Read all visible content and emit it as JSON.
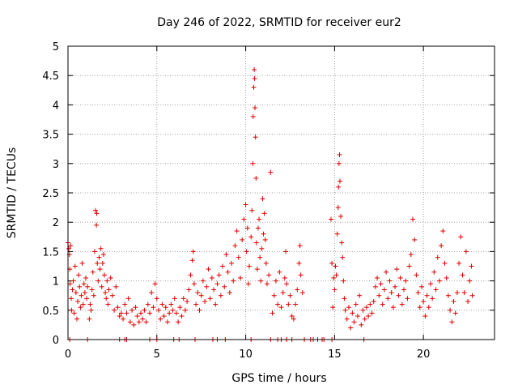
{
  "chart_data": {
    "type": "scatter",
    "title": "Day 246 of 2022, SRMTID for receiver eur2",
    "xlabel": "GPS time / hours",
    "ylabel": "SRMTID / TECUs",
    "xlim": [
      0,
      24
    ],
    "ylim": [
      0,
      5
    ],
    "x_ticks": [
      0,
      5,
      10,
      15,
      20
    ],
    "x_tick_labels": [
      "0",
      "5",
      "10",
      "15",
      "20"
    ],
    "y_ticks": [
      0,
      0.5,
      1,
      1.5,
      2,
      2.5,
      3,
      3.5,
      4,
      4.5,
      5
    ],
    "y_tick_labels": [
      "0",
      "0.5",
      "1",
      "1.5",
      "2",
      "2.5",
      "3",
      "3.5",
      "4",
      "4.5",
      "5"
    ],
    "grid": true,
    "marker": "+",
    "color": "#e00000",
    "series": [
      {
        "name": "SRMTID",
        "points": [
          [
            0.0,
            1.65
          ],
          [
            0.05,
            1.55
          ],
          [
            0.08,
            1.45
          ],
          [
            0.1,
            1.2
          ],
          [
            0.12,
            0.95
          ],
          [
            0.15,
            1.6
          ],
          [
            0.18,
            0.7
          ],
          [
            0.2,
            0.5
          ],
          [
            0.25,
            0.85
          ],
          [
            0.3,
            1.0
          ],
          [
            0.35,
            0.45
          ],
          [
            0.4,
            1.25
          ],
          [
            0.45,
            0.8
          ],
          [
            0.5,
            0.35
          ],
          [
            0.55,
            0.65
          ],
          [
            0.6,
            1.1
          ],
          [
            0.65,
            0.9
          ],
          [
            0.7,
            0.55
          ],
          [
            0.75,
            0.75
          ],
          [
            0.8,
            1.3
          ],
          [
            0.85,
            0.6
          ],
          [
            0.9,
            0.95
          ],
          [
            0.95,
            0.8
          ],
          [
            1.0,
            1.05
          ],
          [
            1.05,
            0.7
          ],
          [
            1.1,
            0.9
          ],
          [
            1.2,
            0.35
          ],
          [
            1.25,
            0.6
          ],
          [
            1.3,
            0.5
          ],
          [
            1.35,
            0.85
          ],
          [
            1.4,
            1.15
          ],
          [
            1.45,
            0.75
          ],
          [
            1.5,
            1.5
          ],
          [
            1.55,
            2.2
          ],
          [
            1.6,
            1.95
          ],
          [
            1.62,
            2.15
          ],
          [
            1.65,
            1.3
          ],
          [
            1.7,
            1.0
          ],
          [
            1.75,
            1.4
          ],
          [
            1.8,
            1.2
          ],
          [
            1.85,
            1.55
          ],
          [
            1.9,
            0.9
          ],
          [
            1.95,
            1.3
          ],
          [
            2.0,
            1.45
          ],
          [
            2.05,
            1.1
          ],
          [
            2.1,
            0.8
          ],
          [
            2.15,
            0.7
          ],
          [
            2.2,
            1.0
          ],
          [
            2.25,
            0.6
          ],
          [
            2.3,
            0.85
          ],
          [
            2.4,
            1.05
          ],
          [
            2.5,
            0.75
          ],
          [
            2.6,
            0.5
          ],
          [
            2.7,
            0.9
          ],
          [
            2.8,
            0.55
          ],
          [
            2.9,
            0.4
          ],
          [
            3.0,
            0.45
          ],
          [
            3.1,
            0.35
          ],
          [
            3.2,
            0.6
          ],
          [
            3.3,
            0.45
          ],
          [
            3.4,
            0.7
          ],
          [
            3.5,
            0.3
          ],
          [
            3.6,
            0.5
          ],
          [
            3.7,
            0.25
          ],
          [
            3.8,
            0.55
          ],
          [
            3.9,
            0.4
          ],
          [
            4.0,
            0.3
          ],
          [
            4.1,
            0.45
          ],
          [
            4.2,
            0.35
          ],
          [
            4.3,
            0.5
          ],
          [
            4.4,
            0.3
          ],
          [
            4.5,
            0.6
          ],
          [
            4.6,
            0.45
          ],
          [
            4.7,
            0.8
          ],
          [
            4.8,
            0.55
          ],
          [
            4.9,
            0.95
          ],
          [
            5.0,
            0.7
          ],
          [
            5.1,
            0.5
          ],
          [
            5.2,
            0.35
          ],
          [
            5.3,
            0.6
          ],
          [
            5.4,
            0.4
          ],
          [
            5.5,
            0.55
          ],
          [
            5.6,
            0.3
          ],
          [
            5.7,
            0.45
          ],
          [
            5.8,
            0.6
          ],
          [
            5.9,
            0.5
          ],
          [
            6.0,
            0.7
          ],
          [
            6.1,
            0.45
          ],
          [
            6.2,
            0.3
          ],
          [
            6.3,
            0.55
          ],
          [
            6.4,
            0.4
          ],
          [
            6.5,
            0.7
          ],
          [
            6.6,
            0.5
          ],
          [
            6.7,
            0.65
          ],
          [
            6.8,
            0.85
          ],
          [
            6.9,
            1.1
          ],
          [
            7.0,
            1.35
          ],
          [
            7.05,
            1.5
          ],
          [
            7.1,
            0.95
          ],
          [
            7.2,
            0.6
          ],
          [
            7.3,
            0.8
          ],
          [
            7.4,
            0.5
          ],
          [
            7.5,
            0.75
          ],
          [
            7.6,
            1.0
          ],
          [
            7.7,
            0.65
          ],
          [
            7.8,
            0.9
          ],
          [
            7.9,
            1.2
          ],
          [
            8.0,
            0.7
          ],
          [
            8.1,
            1.05
          ],
          [
            8.2,
            0.85
          ],
          [
            8.3,
            0.6
          ],
          [
            8.4,
            0.95
          ],
          [
            8.5,
            1.1
          ],
          [
            8.6,
            0.75
          ],
          [
            8.7,
            1.25
          ],
          [
            8.8,
            0.9
          ],
          [
            8.9,
            1.45
          ],
          [
            9.0,
            1.15
          ],
          [
            9.1,
            0.8
          ],
          [
            9.2,
            1.3
          ],
          [
            9.3,
            1.0
          ],
          [
            9.4,
            1.6
          ],
          [
            9.5,
            1.85
          ],
          [
            9.6,
            1.4
          ],
          [
            9.7,
            1.05
          ],
          [
            9.8,
            1.7
          ],
          [
            9.9,
            2.05
          ],
          [
            10.0,
            2.3
          ],
          [
            10.05,
            1.5
          ],
          [
            10.1,
            1.9
          ],
          [
            10.15,
            0.95
          ],
          [
            10.2,
            1.25
          ],
          [
            10.3,
            1.75
          ],
          [
            10.35,
            2.2
          ],
          [
            10.4,
            3.0
          ],
          [
            10.42,
            3.8
          ],
          [
            10.45,
            4.3
          ],
          [
            10.48,
            4.6
          ],
          [
            10.5,
            4.45
          ],
          [
            10.52,
            3.95
          ],
          [
            10.55,
            3.45
          ],
          [
            10.58,
            2.75
          ],
          [
            10.6,
            1.65
          ],
          [
            10.65,
            1.2
          ],
          [
            10.7,
            1.9
          ],
          [
            10.75,
            2.05
          ],
          [
            10.8,
            1.4
          ],
          [
            10.85,
            1.0
          ],
          [
            10.9,
            1.55
          ],
          [
            10.95,
            2.4
          ],
          [
            11.0,
            1.8
          ],
          [
            11.05,
            2.15
          ],
          [
            11.1,
            1.7
          ],
          [
            11.15,
            1.3
          ],
          [
            11.2,
            0.95
          ],
          [
            11.3,
            1.1
          ],
          [
            11.4,
            2.85
          ],
          [
            11.5,
            0.45
          ],
          [
            11.6,
            0.75
          ],
          [
            11.7,
            1.0
          ],
          [
            11.8,
            0.6
          ],
          [
            11.9,
            1.15
          ],
          [
            12.0,
            0.55
          ],
          [
            12.1,
            0.8
          ],
          [
            12.2,
            1.05
          ],
          [
            12.25,
            1.5
          ],
          [
            12.3,
            0.95
          ],
          [
            12.4,
            0.6
          ],
          [
            12.5,
            0.75
          ],
          [
            12.6,
            0.4
          ],
          [
            12.7,
            0.35
          ],
          [
            12.8,
            0.6
          ],
          [
            12.9,
            0.85
          ],
          [
            13.0,
            1.3
          ],
          [
            13.05,
            1.6
          ],
          [
            13.1,
            1.1
          ],
          [
            13.2,
            0.8
          ],
          [
            14.8,
            2.05
          ],
          [
            14.85,
            1.3
          ],
          [
            14.9,
            0.55
          ],
          [
            14.95,
            1.05
          ],
          [
            15.0,
            0.85
          ],
          [
            15.05,
            1.25
          ],
          [
            15.1,
            1.1
          ],
          [
            15.15,
            1.8
          ],
          [
            15.2,
            2.25
          ],
          [
            15.22,
            2.6
          ],
          [
            15.25,
            3.0
          ],
          [
            15.28,
            3.15
          ],
          [
            15.3,
            2.7
          ],
          [
            15.35,
            2.1
          ],
          [
            15.4,
            1.65
          ],
          [
            15.45,
            1.4
          ],
          [
            15.5,
            1.0
          ],
          [
            15.55,
            0.7
          ],
          [
            15.6,
            0.5
          ],
          [
            15.7,
            0.35
          ],
          [
            15.8,
            0.55
          ],
          [
            15.9,
            0.2
          ],
          [
            16.0,
            0.45
          ],
          [
            16.1,
            0.3
          ],
          [
            16.2,
            0.6
          ],
          [
            16.3,
            0.4
          ],
          [
            16.4,
            0.75
          ],
          [
            16.5,
            0.25
          ],
          [
            16.6,
            0.5
          ],
          [
            16.7,
            0.35
          ],
          [
            16.8,
            0.55
          ],
          [
            16.9,
            0.4
          ],
          [
            17.0,
            0.6
          ],
          [
            17.1,
            0.45
          ],
          [
            17.2,
            0.65
          ],
          [
            17.3,
            0.9
          ],
          [
            17.4,
            1.05
          ],
          [
            17.5,
            0.75
          ],
          [
            17.6,
            0.95
          ],
          [
            17.7,
            0.6
          ],
          [
            17.8,
            0.85
          ],
          [
            17.9,
            1.15
          ],
          [
            18.0,
            0.7
          ],
          [
            18.1,
            1.0
          ],
          [
            18.2,
            0.8
          ],
          [
            18.3,
            0.55
          ],
          [
            18.4,
            0.9
          ],
          [
            18.5,
            1.2
          ],
          [
            18.6,
            0.75
          ],
          [
            18.7,
            1.05
          ],
          [
            18.8,
            0.6
          ],
          [
            18.9,
            0.85
          ],
          [
            19.0,
            1.0
          ],
          [
            19.1,
            0.7
          ],
          [
            19.2,
            1.25
          ],
          [
            19.3,
            1.45
          ],
          [
            19.4,
            2.05
          ],
          [
            19.5,
            1.7
          ],
          [
            19.6,
            1.1
          ],
          [
            19.7,
            0.8
          ],
          [
            19.8,
            0.55
          ],
          [
            19.9,
            0.9
          ],
          [
            20.0,
            0.65
          ],
          [
            20.1,
            0.4
          ],
          [
            20.2,
            0.75
          ],
          [
            20.3,
            0.55
          ],
          [
            20.4,
            0.95
          ],
          [
            20.5,
            0.7
          ],
          [
            20.6,
            1.15
          ],
          [
            20.7,
            0.85
          ],
          [
            20.8,
            1.4
          ],
          [
            20.9,
            1.0
          ],
          [
            21.0,
            1.6
          ],
          [
            21.1,
            1.85
          ],
          [
            21.2,
            1.3
          ],
          [
            21.3,
            1.05
          ],
          [
            21.4,
            0.75
          ],
          [
            21.5,
            0.5
          ],
          [
            21.6,
            0.3
          ],
          [
            21.7,
            0.65
          ],
          [
            21.8,
            0.45
          ],
          [
            21.9,
            0.8
          ],
          [
            22.0,
            1.3
          ],
          [
            22.1,
            1.75
          ],
          [
            22.2,
            1.1
          ],
          [
            22.3,
            0.8
          ],
          [
            22.4,
            1.5
          ],
          [
            22.5,
            0.65
          ],
          [
            22.6,
            1.0
          ],
          [
            22.7,
            1.25
          ],
          [
            22.75,
            0.75
          ]
        ]
      }
    ],
    "zero_points_x": [
      0.1,
      1.1,
      2.9,
      3.2,
      3.3,
      4.6,
      5.0,
      5.95,
      6.25,
      7.15,
      8.15,
      8.4,
      8.85,
      10.3,
      11.4,
      11.8,
      12.0,
      12.3,
      12.6,
      13.3,
      13.65,
      13.8,
      14.05,
      14.3,
      14.4,
      14.85,
      16.65
    ]
  }
}
